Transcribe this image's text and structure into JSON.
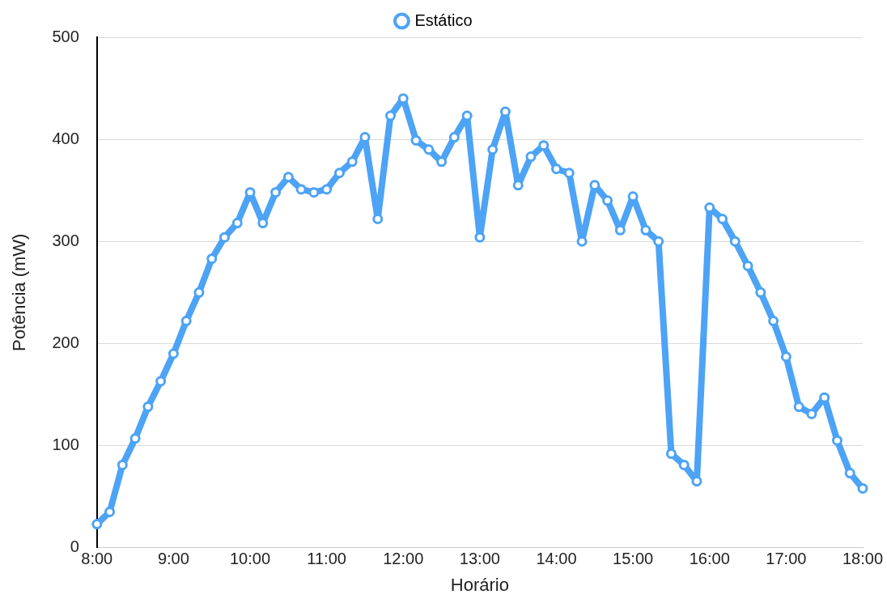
{
  "chart_data": {
    "type": "line",
    "xlabel": "Horário",
    "ylabel": "Potência (mW)",
    "x": [
      8,
      8.1667,
      8.3333,
      8.5,
      8.6667,
      8.8333,
      9,
      9.1667,
      9.3333,
      9.5,
      9.6667,
      9.8333,
      10,
      10.1667,
      10.3333,
      10.5,
      10.6667,
      10.8333,
      11,
      11.1667,
      11.3333,
      11.5,
      11.6667,
      11.8333,
      12,
      12.1667,
      12.3333,
      12.5,
      12.6667,
      12.8333,
      13,
      13.1667,
      13.3333,
      13.5,
      13.6667,
      13.8333,
      14,
      14.1667,
      14.3333,
      14.5,
      14.6667,
      14.8333,
      15,
      15.1667,
      15.3333,
      15.5,
      15.6667,
      15.8333,
      16,
      16.1667,
      16.3333,
      16.5,
      16.6667,
      16.8333,
      17,
      17.1667,
      17.3333,
      17.5,
      17.6667,
      17.8333,
      18
    ],
    "series": [
      {
        "name": "Estático",
        "color": "#4da3f5",
        "values": [
          23,
          35,
          81,
          107,
          138,
          163,
          190,
          222,
          250,
          283,
          304,
          318,
          348,
          318,
          348,
          363,
          351,
          348,
          351,
          367,
          378,
          402,
          322,
          423,
          440,
          399,
          390,
          378,
          402,
          423,
          304,
          390,
          427,
          355,
          383,
          394,
          371,
          367,
          300,
          355,
          340,
          311,
          344,
          311,
          300,
          92,
          81,
          65,
          333,
          322,
          300,
          276,
          250,
          222,
          187,
          138,
          131,
          147,
          105,
          73,
          58
        ]
      }
    ],
    "xlim": [
      8,
      18
    ],
    "xticks": [
      {
        "value": 8,
        "label": "8:00"
      },
      {
        "value": 9,
        "label": "9:00"
      },
      {
        "value": 10,
        "label": "10:00"
      },
      {
        "value": 11,
        "label": "11:00"
      },
      {
        "value": 12,
        "label": "12:00"
      },
      {
        "value": 13,
        "label": "13:00"
      },
      {
        "value": 14,
        "label": "14:00"
      },
      {
        "value": 15,
        "label": "15:00"
      },
      {
        "value": 16,
        "label": "16:00"
      },
      {
        "value": 17,
        "label": "17:00"
      },
      {
        "value": 18,
        "label": "18:00"
      }
    ],
    "ylim": [
      0,
      500
    ],
    "yticks": [
      0,
      100,
      200,
      300,
      400,
      500
    ],
    "grid": "y",
    "legend": "top",
    "marker": "circle",
    "line_style": "solid"
  }
}
